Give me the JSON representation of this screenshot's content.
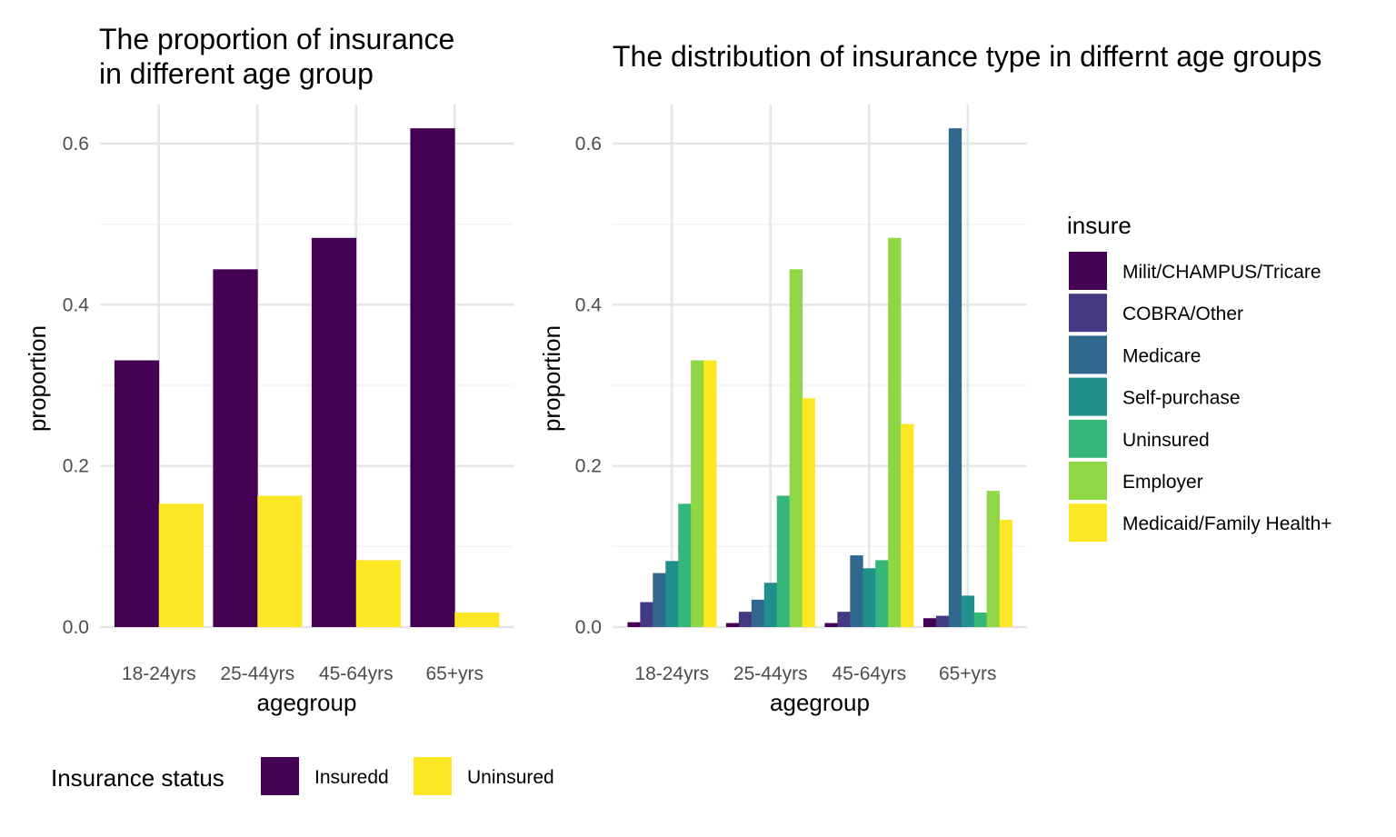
{
  "chart_data": [
    {
      "type": "bar",
      "title_lines": [
        "The proportion of insurance",
        "in different age group"
      ],
      "xlabel": "agegroup",
      "ylabel": "proportion",
      "ylim": [
        0,
        0.62
      ],
      "yticks": [
        0.0,
        0.2,
        0.4,
        0.6
      ],
      "ytick_labels": [
        "0.0",
        "0.2",
        "0.4",
        "0.6"
      ],
      "categories": [
        "18-24yrs",
        "25-44yrs",
        "45-64yrs",
        "65+yrs"
      ],
      "legend": {
        "title": "Insurance status",
        "position": "bottom"
      },
      "series": [
        {
          "name": "Insuredd",
          "color": "#440154",
          "values": [
            0.331,
            0.444,
            0.483,
            0.619
          ]
        },
        {
          "name": "Uninsured",
          "color": "#FDE725",
          "values": [
            0.153,
            0.163,
            0.083,
            0.018
          ]
        }
      ]
    },
    {
      "type": "bar",
      "title": "The distribution of insurance type in differnt age groups",
      "xlabel": "agegroup",
      "ylabel": "proportion",
      "ylim": [
        0,
        0.62
      ],
      "yticks": [
        0.0,
        0.2,
        0.4,
        0.6
      ],
      "ytick_labels": [
        "0.0",
        "0.2",
        "0.4",
        "0.6"
      ],
      "categories": [
        "18-24yrs",
        "25-44yrs",
        "45-64yrs",
        "65+yrs"
      ],
      "legend": {
        "title": "insure",
        "position": "right"
      },
      "series": [
        {
          "name": "Milit/CHAMPUS/Tricare",
          "color": "#440154",
          "values": [
            0.006,
            0.005,
            0.005,
            0.011
          ]
        },
        {
          "name": "COBRA/Other",
          "color": "#443A83",
          "values": [
            0.031,
            0.019,
            0.019,
            0.014
          ]
        },
        {
          "name": "Medicare",
          "color": "#31688E",
          "values": [
            0.067,
            0.034,
            0.089,
            0.619
          ]
        },
        {
          "name": "Self-purchase",
          "color": "#21908C",
          "values": [
            0.082,
            0.055,
            0.073,
            0.039
          ]
        },
        {
          "name": "Uninsured",
          "color": "#35B779",
          "values": [
            0.153,
            0.163,
            0.083,
            0.018
          ]
        },
        {
          "name": "Employer",
          "color": "#8FD744",
          "values": [
            0.331,
            0.444,
            0.483,
            0.169
          ]
        },
        {
          "name": "Medicaid/Family Health+",
          "color": "#FDE725",
          "values": [
            0.331,
            0.284,
            0.252,
            0.133
          ]
        }
      ]
    }
  ]
}
